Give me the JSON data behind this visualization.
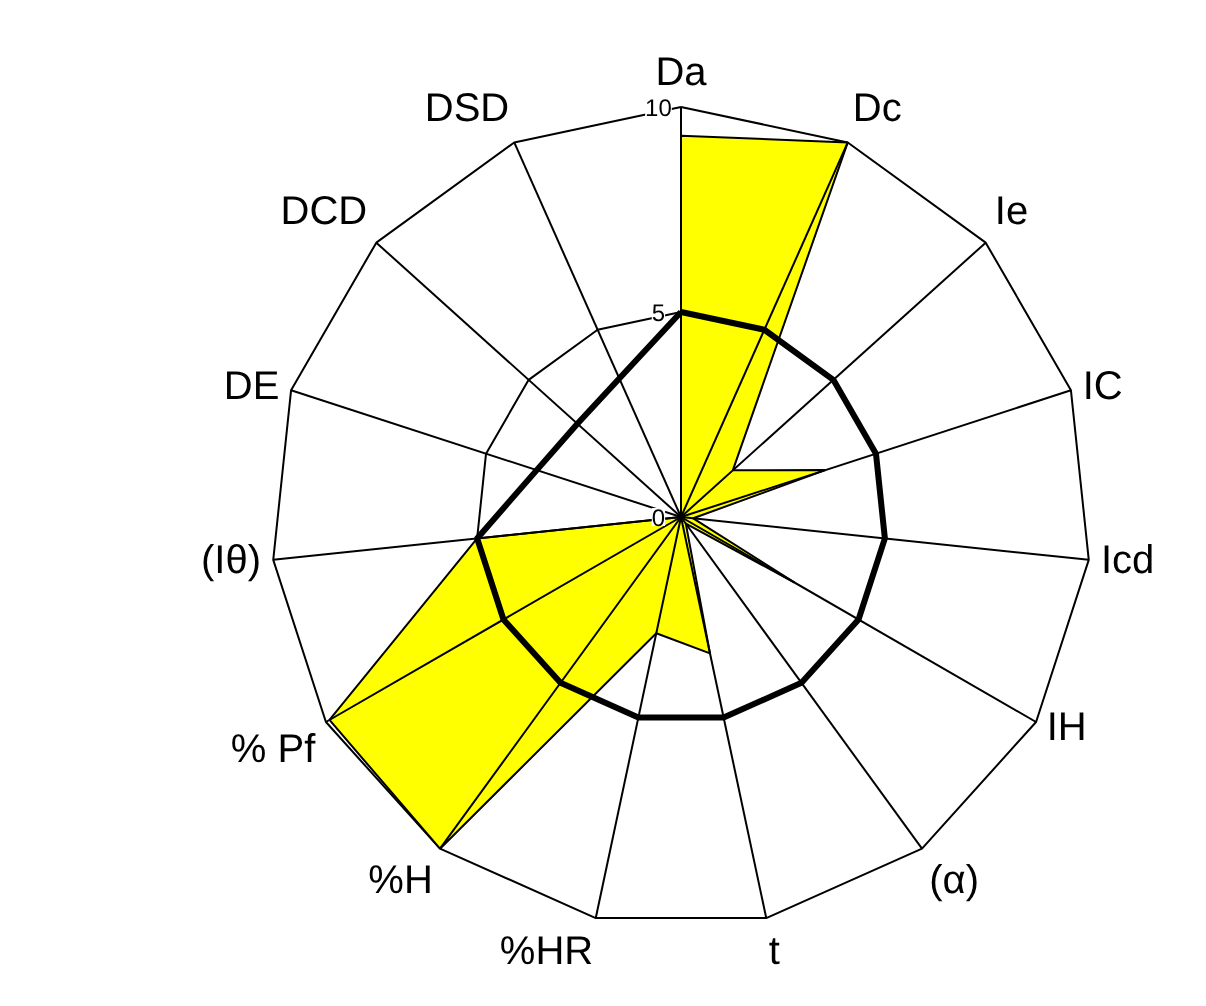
{
  "chart_data": {
    "type": "radar",
    "categories": [
      "Da",
      "Dc",
      "Ie",
      "IC",
      "Icd",
      "IH",
      "(α)",
      "t",
      "%HR",
      "%H",
      "% Pf",
      "(Iθ)",
      "DE",
      "DCD",
      "DSD"
    ],
    "series": [
      {
        "color": "#ffff00",
        "values": [
          9.3,
          10,
          1.7,
          3.7,
          0.3,
          3.2,
          0.2,
          3.4,
          2.9,
          10,
          9.9,
          5,
          0,
          0,
          0
        ]
      },
      {
        "color": "#000000",
        "values": [
          5,
          5,
          5,
          5,
          5,
          5,
          5,
          5,
          5,
          5,
          5,
          5,
          3.7,
          3.4,
          3.7
        ]
      }
    ],
    "ylim": [
      0,
      10
    ],
    "yticks": [
      0,
      5,
      10
    ],
    "grid": true
  }
}
